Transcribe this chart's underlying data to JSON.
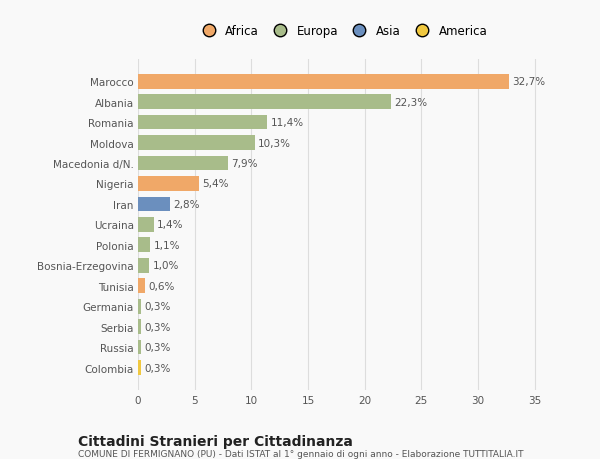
{
  "countries": [
    "Marocco",
    "Albania",
    "Romania",
    "Moldova",
    "Macedonia d/N.",
    "Nigeria",
    "Iran",
    "Ucraina",
    "Polonia",
    "Bosnia-Erzegovina",
    "Tunisia",
    "Germania",
    "Serbia",
    "Russia",
    "Colombia"
  ],
  "values": [
    32.7,
    22.3,
    11.4,
    10.3,
    7.9,
    5.4,
    2.8,
    1.4,
    1.1,
    1.0,
    0.6,
    0.3,
    0.3,
    0.3,
    0.3
  ],
  "labels": [
    "32,7%",
    "22,3%",
    "11,4%",
    "10,3%",
    "7,9%",
    "5,4%",
    "2,8%",
    "1,4%",
    "1,1%",
    "1,0%",
    "0,6%",
    "0,3%",
    "0,3%",
    "0,3%",
    "0,3%"
  ],
  "colors": [
    "#f0a868",
    "#a8bc8a",
    "#a8bc8a",
    "#a8bc8a",
    "#a8bc8a",
    "#f0a868",
    "#6b8fbe",
    "#a8bc8a",
    "#a8bc8a",
    "#a8bc8a",
    "#f0a868",
    "#a8bc8a",
    "#a8bc8a",
    "#a8bc8a",
    "#f0c840"
  ],
  "legend_labels": [
    "Africa",
    "Europa",
    "Asia",
    "America"
  ],
  "legend_colors": [
    "#f0a868",
    "#a8bc8a",
    "#6b8fbe",
    "#f0c840"
  ],
  "title": "Cittadini Stranieri per Cittadinanza",
  "subtitle": "COMUNE DI FERMIGNANO (PU) - Dati ISTAT al 1° gennaio di ogni anno - Elaborazione TUTTITALIA.IT",
  "xlim": [
    0,
    36
  ],
  "xticks": [
    0,
    5,
    10,
    15,
    20,
    25,
    30,
    35
  ],
  "background_color": "#f9f9f9",
  "bar_height": 0.72,
  "grid_color": "#dddddd",
  "label_fontsize": 7.5,
  "tick_fontsize": 7.5,
  "title_fontsize": 10,
  "subtitle_fontsize": 6.5
}
